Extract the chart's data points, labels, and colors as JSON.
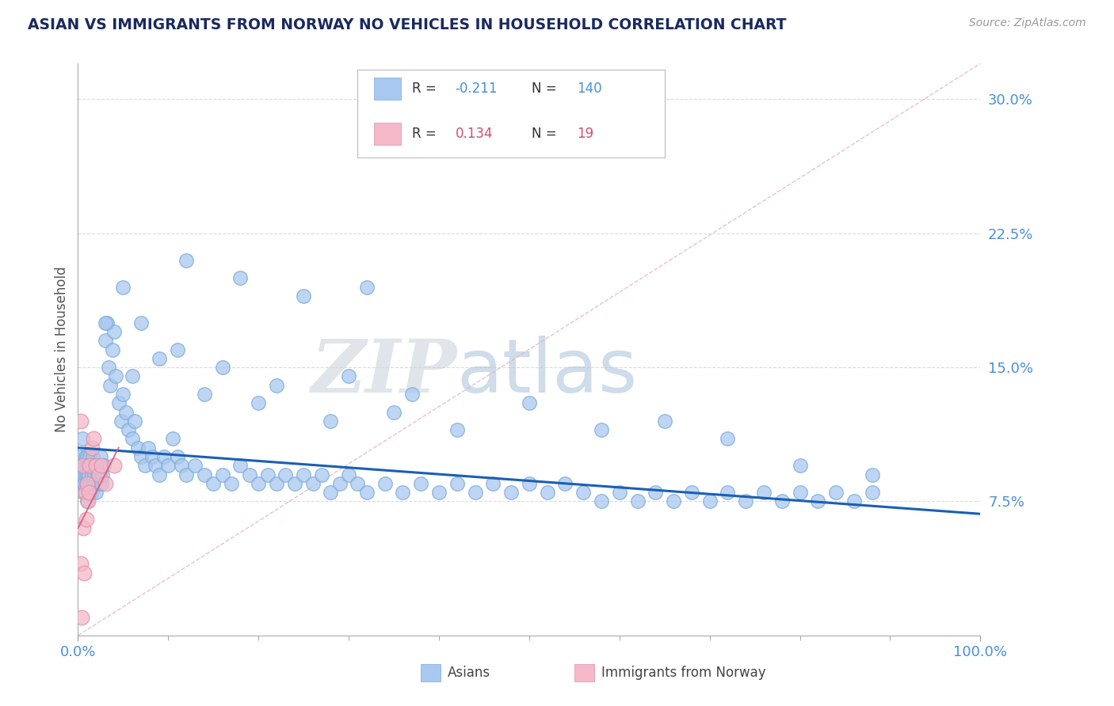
{
  "title": "ASIAN VS IMMIGRANTS FROM NORWAY NO VEHICLES IN HOUSEHOLD CORRELATION CHART",
  "source": "Source: ZipAtlas.com",
  "ylabel": "No Vehicles in Household",
  "xlim": [
    0.0,
    1.0
  ],
  "ylim": [
    0.0,
    0.32
  ],
  "yticks": [
    0.075,
    0.15,
    0.225,
    0.3
  ],
  "ytick_labels": [
    "7.5%",
    "15.0%",
    "22.5%",
    "30.0%"
  ],
  "series1_label": "Asians",
  "series1_color": "#a8c8f0",
  "series1_edge": "#7aaad8",
  "series2_label": "Immigrants from Norway",
  "series2_color": "#f4b8c8",
  "series2_edge": "#e090a8",
  "trend1_color": "#1a5fb4",
  "trend2_color": "#d06080",
  "diag_color": "#d0a0b0",
  "background_color": "#ffffff",
  "grid_color": "#cccccc",
  "title_color": "#1a2a5e",
  "tick_label_color": "#4a90d9",
  "legend_text_color": "#333333",
  "legend_val_color_blue": "#4a90d9",
  "legend_val_color_pink": "#d05070",
  "watermark_zip_color": "#c0c8d8",
  "watermark_atlas_color": "#a0b8d8",
  "asians_x": [
    0.003,
    0.004,
    0.004,
    0.005,
    0.005,
    0.005,
    0.006,
    0.006,
    0.007,
    0.007,
    0.008,
    0.008,
    0.009,
    0.009,
    0.01,
    0.01,
    0.01,
    0.011,
    0.011,
    0.012,
    0.012,
    0.013,
    0.013,
    0.014,
    0.014,
    0.015,
    0.015,
    0.016,
    0.016,
    0.017,
    0.018,
    0.019,
    0.02,
    0.021,
    0.022,
    0.023,
    0.025,
    0.026,
    0.027,
    0.029,
    0.03,
    0.032,
    0.034,
    0.036,
    0.038,
    0.04,
    0.042,
    0.045,
    0.048,
    0.05,
    0.053,
    0.056,
    0.06,
    0.063,
    0.066,
    0.07,
    0.074,
    0.078,
    0.082,
    0.086,
    0.09,
    0.095,
    0.1,
    0.105,
    0.11,
    0.115,
    0.12,
    0.13,
    0.14,
    0.15,
    0.16,
    0.17,
    0.18,
    0.19,
    0.2,
    0.21,
    0.22,
    0.23,
    0.24,
    0.25,
    0.26,
    0.27,
    0.28,
    0.29,
    0.3,
    0.31,
    0.32,
    0.34,
    0.36,
    0.38,
    0.4,
    0.42,
    0.44,
    0.46,
    0.48,
    0.5,
    0.52,
    0.54,
    0.56,
    0.58,
    0.6,
    0.62,
    0.64,
    0.66,
    0.68,
    0.7,
    0.72,
    0.74,
    0.76,
    0.78,
    0.8,
    0.82,
    0.84,
    0.86,
    0.88,
    0.05,
    0.12,
    0.18,
    0.25,
    0.32,
    0.06,
    0.09,
    0.14,
    0.2,
    0.28,
    0.35,
    0.42,
    0.5,
    0.58,
    0.65,
    0.72,
    0.8,
    0.88,
    0.03,
    0.07,
    0.11,
    0.16,
    0.22,
    0.3,
    0.37
  ],
  "asians_y": [
    0.1,
    0.085,
    0.095,
    0.09,
    0.095,
    0.11,
    0.08,
    0.095,
    0.085,
    0.095,
    0.09,
    0.1,
    0.085,
    0.095,
    0.075,
    0.09,
    0.1,
    0.085,
    0.095,
    0.08,
    0.09,
    0.095,
    0.1,
    0.085,
    0.095,
    0.08,
    0.09,
    0.095,
    0.1,
    0.085,
    0.09,
    0.095,
    0.08,
    0.095,
    0.09,
    0.085,
    0.1,
    0.085,
    0.09,
    0.095,
    0.165,
    0.175,
    0.15,
    0.14,
    0.16,
    0.17,
    0.145,
    0.13,
    0.12,
    0.135,
    0.125,
    0.115,
    0.11,
    0.12,
    0.105,
    0.1,
    0.095,
    0.105,
    0.1,
    0.095,
    0.09,
    0.1,
    0.095,
    0.11,
    0.1,
    0.095,
    0.09,
    0.095,
    0.09,
    0.085,
    0.09,
    0.085,
    0.095,
    0.09,
    0.085,
    0.09,
    0.085,
    0.09,
    0.085,
    0.09,
    0.085,
    0.09,
    0.08,
    0.085,
    0.09,
    0.085,
    0.08,
    0.085,
    0.08,
    0.085,
    0.08,
    0.085,
    0.08,
    0.085,
    0.08,
    0.085,
    0.08,
    0.085,
    0.08,
    0.075,
    0.08,
    0.075,
    0.08,
    0.075,
    0.08,
    0.075,
    0.08,
    0.075,
    0.08,
    0.075,
    0.08,
    0.075,
    0.08,
    0.075,
    0.08,
    0.195,
    0.21,
    0.2,
    0.19,
    0.195,
    0.145,
    0.155,
    0.135,
    0.13,
    0.12,
    0.125,
    0.115,
    0.13,
    0.115,
    0.12,
    0.11,
    0.095,
    0.09,
    0.175,
    0.175,
    0.16,
    0.15,
    0.14,
    0.145,
    0.135
  ],
  "norway_x": [
    0.003,
    0.004,
    0.005,
    0.006,
    0.007,
    0.008,
    0.009,
    0.01,
    0.011,
    0.012,
    0.013,
    0.015,
    0.017,
    0.02,
    0.023,
    0.026,
    0.03,
    0.003,
    0.04
  ],
  "norway_y": [
    0.04,
    0.01,
    0.095,
    0.06,
    0.035,
    0.08,
    0.065,
    0.085,
    0.075,
    0.08,
    0.095,
    0.105,
    0.11,
    0.095,
    0.09,
    0.095,
    0.085,
    0.12,
    0.095
  ]
}
